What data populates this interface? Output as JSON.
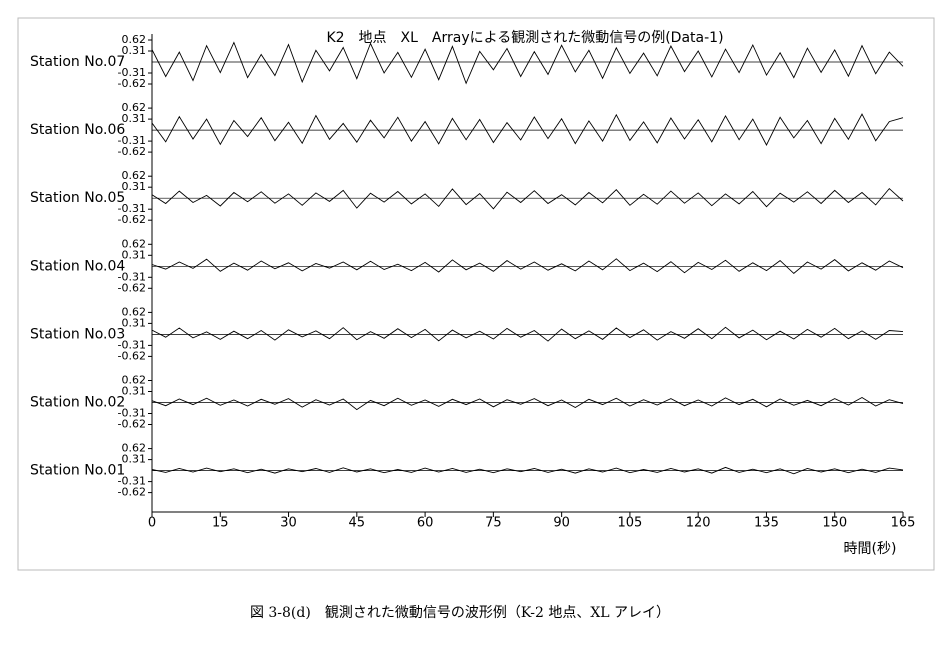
{
  "chart_data": {
    "type": "line",
    "stacked_panels": true,
    "title": "K2　地点　XL　Arrayによる観測された微動信号の例(Data-1)",
    "xlabel": "時間(秒)",
    "xlim": [
      0,
      165
    ],
    "xticks": [
      0,
      15,
      30,
      45,
      60,
      75,
      90,
      105,
      120,
      135,
      150,
      165
    ],
    "ylim": [
      -0.62,
      0.62
    ],
    "yticks": [
      -0.62,
      -0.31,
      0.31,
      0.62
    ],
    "x": [
      0,
      3,
      6,
      9,
      12,
      15,
      18,
      21,
      24,
      27,
      30,
      33,
      36,
      39,
      42,
      45,
      48,
      51,
      54,
      57,
      60,
      63,
      66,
      69,
      72,
      75,
      78,
      81,
      84,
      87,
      90,
      93,
      96,
      99,
      102,
      105,
      108,
      111,
      114,
      117,
      120,
      123,
      126,
      129,
      132,
      135,
      138,
      141,
      144,
      147,
      150,
      153,
      156,
      159,
      162,
      165
    ],
    "series": [
      {
        "name": "Station No.07",
        "color": "#000000",
        "values": [
          0.35,
          -0.41,
          0.28,
          -0.52,
          0.46,
          -0.3,
          0.55,
          -0.44,
          0.21,
          -0.38,
          0.49,
          -0.56,
          0.33,
          -0.25,
          0.41,
          -0.47,
          0.52,
          -0.31,
          0.27,
          -0.43,
          0.36,
          -0.5,
          0.44,
          -0.6,
          0.3,
          -0.22,
          0.38,
          -0.41,
          0.29,
          -0.35,
          0.47,
          -0.28,
          0.33,
          -0.46,
          0.4,
          -0.32,
          0.25,
          -0.39,
          0.45,
          -0.27,
          0.31,
          -0.42,
          0.36,
          -0.3,
          0.48,
          -0.37,
          0.26,
          -0.44,
          0.39,
          -0.29,
          0.34,
          -0.4,
          0.46,
          -0.33,
          0.28,
          -0.12
        ]
      },
      {
        "name": "Station No.06",
        "color": "#000000",
        "values": [
          0.2,
          -0.33,
          0.38,
          -0.25,
          0.31,
          -0.4,
          0.27,
          -0.18,
          0.35,
          -0.3,
          0.22,
          -0.37,
          0.41,
          -0.26,
          0.19,
          -0.34,
          0.28,
          -0.22,
          0.36,
          -0.31,
          0.24,
          -0.39,
          0.33,
          -0.27,
          0.3,
          -0.35,
          0.21,
          -0.28,
          0.37,
          -0.24,
          0.32,
          -0.38,
          0.26,
          -0.31,
          0.43,
          -0.29,
          0.23,
          -0.36,
          0.34,
          -0.25,
          0.29,
          -0.33,
          0.4,
          -0.27,
          0.31,
          -0.42,
          0.36,
          -0.22,
          0.27,
          -0.38,
          0.33,
          -0.26,
          0.45,
          -0.3,
          0.24,
          0.35
        ]
      },
      {
        "name": "Station No.05",
        "color": "#000000",
        "values": [
          0.1,
          -0.15,
          0.2,
          -0.12,
          0.08,
          -0.22,
          0.16,
          -0.1,
          0.18,
          -0.14,
          0.12,
          -0.2,
          0.15,
          -0.09,
          0.22,
          -0.28,
          0.14,
          -0.11,
          0.19,
          -0.16,
          0.12,
          -0.23,
          0.26,
          -0.18,
          0.13,
          -0.3,
          0.17,
          -0.12,
          0.21,
          -0.15,
          0.1,
          -0.19,
          0.16,
          -0.13,
          0.24,
          -0.2,
          0.11,
          -0.17,
          0.2,
          -0.14,
          0.15,
          -0.21,
          0.12,
          -0.16,
          0.19,
          -0.24,
          0.14,
          -0.11,
          0.18,
          -0.15,
          0.22,
          -0.12,
          0.16,
          -0.19,
          0.27,
          -0.08
        ]
      },
      {
        "name": "Station No.04",
        "color": "#000000",
        "values": [
          0.05,
          -0.08,
          0.12,
          -0.06,
          0.2,
          -0.14,
          0.09,
          -0.11,
          0.15,
          -0.07,
          0.1,
          -0.13,
          0.08,
          -0.05,
          0.12,
          -0.1,
          0.14,
          -0.09,
          0.06,
          -0.12,
          0.11,
          -0.16,
          0.18,
          -0.1,
          0.09,
          -0.14,
          0.16,
          -0.08,
          0.12,
          -0.11,
          0.07,
          -0.13,
          0.15,
          -0.1,
          0.21,
          -0.12,
          0.09,
          -0.15,
          0.13,
          -0.18,
          0.11,
          -0.09,
          0.17,
          -0.14,
          0.1,
          -0.12,
          0.16,
          -0.2,
          0.12,
          -0.08,
          0.19,
          -0.13,
          0.1,
          -0.11,
          0.15,
          -0.04
        ]
      },
      {
        "name": "Station No.03",
        "color": "#000000",
        "values": [
          0.12,
          -0.08,
          0.18,
          -0.1,
          0.07,
          -0.14,
          0.09,
          -0.12,
          0.11,
          -0.16,
          0.13,
          -0.07,
          0.1,
          -0.12,
          0.19,
          -0.15,
          0.08,
          -0.11,
          0.16,
          -0.09,
          0.14,
          -0.18,
          0.12,
          -0.1,
          0.09,
          -0.13,
          0.17,
          -0.08,
          0.11,
          -0.19,
          0.15,
          -0.12,
          0.1,
          -0.14,
          0.18,
          -0.09,
          0.13,
          -0.16,
          0.08,
          -0.11,
          0.16,
          -0.12,
          0.2,
          -0.1,
          0.12,
          -0.15,
          0.09,
          -0.13,
          0.14,
          -0.08,
          0.17,
          -0.12,
          0.1,
          -0.14,
          0.11,
          0.08
        ]
      },
      {
        "name": "Station No.02",
        "color": "#000000",
        "values": [
          0.05,
          -0.09,
          0.1,
          -0.06,
          0.12,
          -0.08,
          0.07,
          -0.1,
          0.09,
          -0.05,
          0.11,
          -0.13,
          0.08,
          -0.07,
          0.1,
          -0.2,
          0.06,
          -0.09,
          0.12,
          -0.08,
          0.07,
          -0.11,
          0.09,
          -0.06,
          0.1,
          -0.12,
          0.08,
          -0.05,
          0.11,
          -0.09,
          0.07,
          -0.14,
          0.09,
          -0.06,
          0.12,
          -0.1,
          0.08,
          -0.07,
          0.11,
          -0.09,
          0.07,
          -0.1,
          0.13,
          -0.06,
          0.09,
          -0.12,
          0.1,
          -0.08,
          0.06,
          -0.09,
          0.11,
          -0.07,
          0.14,
          -0.1,
          0.08,
          -0.03
        ]
      },
      {
        "name": "Station No.01",
        "color": "#000000",
        "values": [
          0.03,
          -0.05,
          0.06,
          -0.04,
          0.07,
          -0.03,
          0.05,
          -0.06,
          0.04,
          -0.07,
          0.05,
          -0.03,
          0.06,
          -0.05,
          0.08,
          -0.04,
          0.05,
          -0.06,
          0.03,
          -0.05,
          0.07,
          -0.04,
          0.06,
          -0.05,
          0.04,
          -0.06,
          0.05,
          -0.03,
          0.06,
          -0.05,
          0.04,
          -0.07,
          0.05,
          -0.04,
          0.07,
          -0.06,
          0.03,
          -0.05,
          0.06,
          -0.04,
          0.05,
          -0.07,
          0.09,
          -0.05,
          0.04,
          -0.06,
          0.05,
          -0.09,
          0.06,
          -0.04,
          0.05,
          -0.06,
          0.04,
          -0.05,
          0.07,
          0.02
        ]
      }
    ]
  },
  "caption": "図 3-8(d)　観測された微動信号の波形例（K-2 地点、XL アレイ）"
}
